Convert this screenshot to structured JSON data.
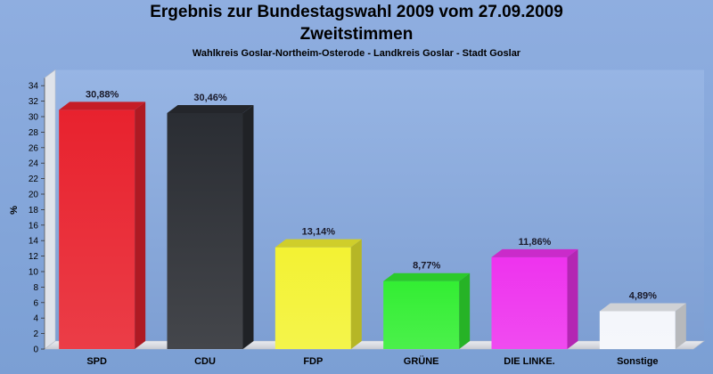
{
  "chart_data": {
    "type": "bar",
    "title": "Ergebnis zur Bundestagswahl 2009 vom 27.09.2009",
    "subtitle_line": "Zweitstimmen",
    "subtitle": "Wahlkreis Goslar-Northeim-Osterode - Landkreis Goslar - Stadt Goslar",
    "ylabel": "%",
    "xlabel": "",
    "ylim": [
      0,
      35
    ],
    "yticks": [
      0,
      2,
      4,
      6,
      8,
      10,
      12,
      14,
      16,
      18,
      20,
      22,
      24,
      26,
      28,
      30,
      32,
      34
    ],
    "grid": false,
    "categories": [
      "SPD",
      "CDU",
      "FDP",
      "GRÜNE",
      "DIE LINKE.",
      "Sonstige"
    ],
    "values": [
      30.88,
      30.46,
      13.14,
      8.77,
      11.86,
      4.89
    ],
    "value_labels": [
      "30,88%",
      "30,46%",
      "13,14%",
      "8,77%",
      "11,86%",
      "4,89%"
    ],
    "colors": [
      "#e8222e",
      "#2a2d33",
      "#f3f233",
      "#33ee33",
      "#ee33ee",
      "#f4f6fb"
    ]
  }
}
